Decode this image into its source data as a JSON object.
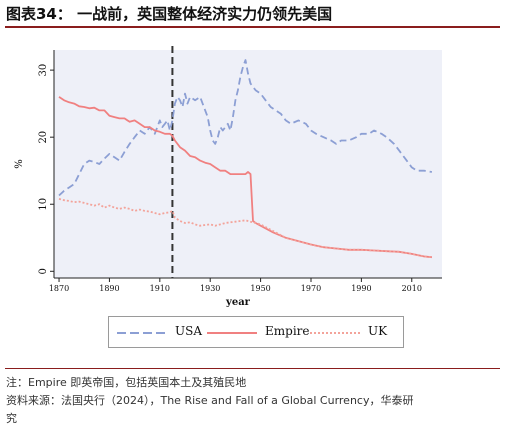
{
  "header": {
    "title": "图表34： 一战前，英国整体经济实力仍领先美国"
  },
  "footer": {
    "note": "注：Empire 即英帝国，包括英国本土及其殖民地",
    "source_line1": "资料来源：法国央行（2024），The Rise and Fall of a Global Currency，华泰研",
    "source_line2": "究"
  },
  "colors": {
    "usa": "#8c9fd4",
    "empire": "#f08080",
    "uk": "#f3a39a",
    "vline": "#333333",
    "header_rule": "#8a1d1d"
  },
  "chart_data": {
    "type": "line",
    "xlabel": "year",
    "ylabel": "%",
    "xlim": [
      1868,
      2022
    ],
    "ylim": [
      -1,
      33
    ],
    "x_ticks": [
      1870,
      1890,
      1910,
      1930,
      1950,
      1970,
      1990,
      2010
    ],
    "y_ticks": [
      0,
      10,
      20,
      30
    ],
    "grid": false,
    "vertical_marker_x": 1915,
    "legend_position": "bottom",
    "series": [
      {
        "name": "USA",
        "style": "dashed",
        "color": "#8c9fd4",
        "x": [
          1870,
          1872,
          1874,
          1876,
          1878,
          1880,
          1882,
          1884,
          1886,
          1888,
          1890,
          1892,
          1894,
          1896,
          1898,
          1900,
          1902,
          1904,
          1906,
          1908,
          1910,
          1911,
          1912,
          1913,
          1914,
          1915,
          1916,
          1917,
          1918,
          1919,
          1920,
          1921,
          1922,
          1924,
          1926,
          1928,
          1929,
          1930,
          1931,
          1932,
          1933,
          1934,
          1935,
          1936,
          1937,
          1938,
          1939,
          1940,
          1941,
          1942,
          1943,
          1944,
          1945,
          1946,
          1947,
          1948,
          1950,
          1952,
          1954,
          1956,
          1958,
          1960,
          1962,
          1965,
          1968,
          1970,
          1972,
          1975,
          1978,
          1980,
          1982,
          1985,
          1988,
          1990,
          1993,
          1995,
          1998,
          2000,
          2003,
          2005,
          2008,
          2010,
          2012,
          2015,
          2018
        ],
        "values": [
          11.3,
          12.0,
          12.5,
          13.0,
          14.5,
          16.0,
          16.5,
          16.3,
          16.0,
          16.8,
          17.5,
          17.0,
          16.5,
          17.8,
          19.0,
          20.0,
          21.0,
          20.5,
          21.5,
          20.5,
          22.5,
          21.5,
          22.0,
          22.5,
          21.0,
          22.5,
          25.0,
          26.0,
          25.5,
          24.5,
          26.5,
          25.0,
          26.0,
          25.5,
          26.0,
          24.0,
          23.0,
          21.0,
          19.5,
          19.0,
          20.0,
          21.5,
          21.0,
          21.5,
          22.0,
          21.0,
          23.0,
          25.5,
          27.0,
          29.0,
          30.5,
          31.5,
          29.5,
          28.0,
          27.5,
          27.0,
          26.5,
          25.5,
          24.5,
          24.0,
          23.5,
          22.5,
          22.0,
          22.5,
          22.0,
          21.0,
          20.5,
          20.0,
          19.5,
          19.0,
          19.5,
          19.5,
          20.0,
          20.5,
          20.5,
          21.0,
          20.5,
          20.0,
          19.0,
          18.0,
          16.5,
          15.5,
          15.0,
          15.0,
          14.8
        ]
      },
      {
        "name": "Empire",
        "style": "solid",
        "color": "#f08080",
        "x": [
          1870,
          1872,
          1874,
          1876,
          1878,
          1880,
          1882,
          1884,
          1886,
          1888,
          1890,
          1892,
          1894,
          1896,
          1898,
          1900,
          1902,
          1904,
          1906,
          1908,
          1910,
          1912,
          1914,
          1915,
          1916,
          1918,
          1920,
          1922,
          1924,
          1926,
          1928,
          1930,
          1932,
          1934,
          1936,
          1938,
          1940,
          1942,
          1944,
          1945,
          1946,
          1947,
          1948,
          1950,
          1955,
          1960,
          1965,
          1970,
          1975,
          1980,
          1985,
          1990,
          1995,
          2000,
          2005,
          2010,
          2015,
          2018
        ],
        "values": [
          26.0,
          25.5,
          25.2,
          25.0,
          24.6,
          24.5,
          24.3,
          24.4,
          24.0,
          24.0,
          23.2,
          23.0,
          22.8,
          22.8,
          22.3,
          22.5,
          22.0,
          21.5,
          21.5,
          21.0,
          20.8,
          20.5,
          20.5,
          20.2,
          19.5,
          18.5,
          18.0,
          17.2,
          17.0,
          16.5,
          16.2,
          16.0,
          15.5,
          15.0,
          15.0,
          14.5,
          14.5,
          14.5,
          14.5,
          14.8,
          14.5,
          7.5,
          7.2,
          6.8,
          5.8,
          5.0,
          4.5,
          4.0,
          3.6,
          3.4,
          3.2,
          3.2,
          3.1,
          3.0,
          2.9,
          2.6,
          2.2,
          2.1
        ]
      },
      {
        "name": "UK",
        "style": "dotted",
        "color": "#f3a39a",
        "x": [
          1870,
          1872,
          1874,
          1876,
          1878,
          1880,
          1882,
          1884,
          1886,
          1888,
          1890,
          1892,
          1894,
          1896,
          1898,
          1900,
          1902,
          1904,
          1906,
          1908,
          1910,
          1912,
          1914,
          1915,
          1916,
          1918,
          1920,
          1922,
          1924,
          1926,
          1928,
          1930,
          1932,
          1934,
          1936,
          1938,
          1940,
          1942,
          1944,
          1946,
          1948,
          1950,
          1955,
          1960,
          1965,
          1970,
          1975,
          1980,
          1985,
          1990,
          1995,
          2000,
          2005,
          2010,
          2015,
          2018
        ],
        "values": [
          10.8,
          10.6,
          10.5,
          10.3,
          10.4,
          10.2,
          10.0,
          9.8,
          10.0,
          9.5,
          9.8,
          9.5,
          9.3,
          9.5,
          9.3,
          9.0,
          9.2,
          9.0,
          8.9,
          8.7,
          8.5,
          8.7,
          8.8,
          9.0,
          8.0,
          7.5,
          7.2,
          7.3,
          7.0,
          6.8,
          6.9,
          7.0,
          6.8,
          7.0,
          7.2,
          7.3,
          7.4,
          7.5,
          7.6,
          7.4,
          7.2,
          7.0,
          6.0,
          5.0,
          4.5,
          4.0,
          3.6,
          3.4,
          3.2,
          3.2,
          3.1,
          3.0,
          2.9,
          2.6,
          2.2,
          2.1
        ]
      }
    ]
  }
}
